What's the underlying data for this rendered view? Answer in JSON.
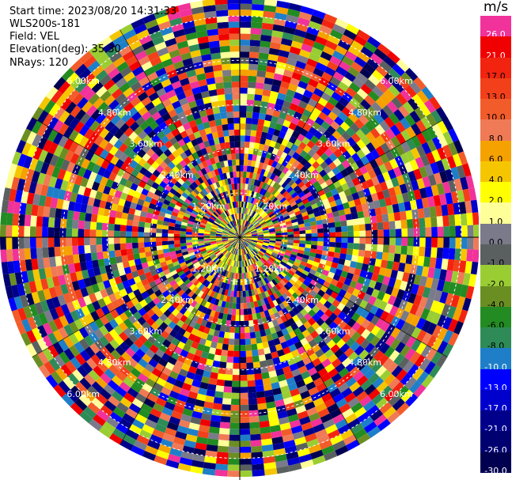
{
  "header": {
    "start_time": "Start time: 2023/08/20 14:31:33",
    "instrument": "WLS200s-181",
    "field": "Field: VEL",
    "elevation": "Elevation(deg): 35.30",
    "nrays": "NRays: 120"
  },
  "colorbar": {
    "unit": "m/s",
    "levels": [
      {
        "label": "26.0",
        "color": "#f0329a"
      },
      {
        "label": "21.0",
        "color": "#f00000"
      },
      {
        "label": "17.0",
        "color": "#f22410"
      },
      {
        "label": "13.0",
        "color": "#f2401a"
      },
      {
        "label": "10.0",
        "color": "#f25b2a"
      },
      {
        "label": "8.0",
        "color": "#f07a55"
      },
      {
        "label": "6.0",
        "color": "#f5a100"
      },
      {
        "label": "4.0",
        "color": "#f5c600"
      },
      {
        "label": "2.0",
        "color": "#ffff00"
      },
      {
        "label": "1.0",
        "color": "#ffff99"
      },
      {
        "label": "0.0",
        "color": "#7a7a8a"
      },
      {
        "label": "-1.0",
        "color": "#5a6060"
      },
      {
        "label": "-2.0",
        "color": "#9acd32"
      },
      {
        "label": "-4.0",
        "color": "#6b8e23"
      },
      {
        "label": "-6.0",
        "color": "#228b22"
      },
      {
        "label": "-8.0",
        "color": "#2e8b57"
      },
      {
        "label": "-10.0",
        "color": "#1e7fc8"
      },
      {
        "label": "-13.0",
        "color": "#0000ff"
      },
      {
        "label": "-17.0",
        "color": "#0000cd"
      },
      {
        "label": "-21.0",
        "color": "#00008b"
      },
      {
        "label": "-26.0",
        "color": "#000070"
      },
      {
        "label": "-30.0",
        "color": "#000050"
      }
    ]
  },
  "chart_data": {
    "type": "heatmap",
    "projection": "polar PPI",
    "field": "VEL",
    "units": "m/s",
    "nrays": 120,
    "elevation_deg": 35.3,
    "range_labels": [
      {
        "text": "1.20km",
        "range": 1.2,
        "directions": [
          "NW",
          "NE",
          "SW",
          "SE"
        ]
      },
      {
        "text": "2.40km",
        "range": 2.4,
        "directions": [
          "NW",
          "NE",
          "SW",
          "SE"
        ]
      },
      {
        "text": "3.60km",
        "range": 3.6,
        "directions": [
          "NW",
          "NE",
          "SW",
          "SE"
        ]
      },
      {
        "text": "4.80km",
        "range": 4.8,
        "directions": [
          "NW",
          "NE",
          "SW",
          "SE"
        ]
      },
      {
        "text": "6.00km",
        "range": 6.0,
        "directions": [
          "NW",
          "NE",
          "SW",
          "SE"
        ]
      }
    ],
    "max_range_km": 6.5,
    "azimuth_grid_deg": 30,
    "range_rings_km": [
      1.2,
      2.4,
      3.6,
      4.8,
      6.0
    ],
    "colorbar_scale": "m/s",
    "clim": [
      -30.0,
      26.0
    ],
    "grid": true
  }
}
